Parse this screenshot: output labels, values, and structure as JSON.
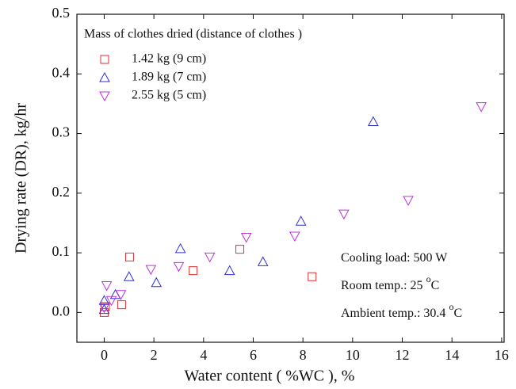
{
  "chart_data": {
    "type": "scatter",
    "xlabel": "Water content ( %WC ), %",
    "ylabel": "Drying rate (DR), kg/hr",
    "legend_title": "Mass of clothes dried (distance of clothes )",
    "legend_position": "upper left",
    "annotations": [
      {
        "text": "Cooling load: 500 W"
      },
      {
        "text": "Room temp.: 25 ",
        "sup": "o",
        "unit": "C"
      },
      {
        "text": "Ambient temp.: 30.4 ",
        "sup": "o",
        "unit": "C"
      }
    ],
    "xlim": [
      -1.1,
      16.1
    ],
    "xticks": [
      0,
      2,
      4,
      6,
      8,
      10,
      12,
      14,
      16
    ],
    "ylim": [
      -0.05,
      0.5
    ],
    "yticks": [
      {
        "value": 0,
        "label": "0.0"
      },
      0.1,
      0.2,
      0.3,
      0.4,
      0.5
    ],
    "series": [
      {
        "name": "1.42 kg (9 cm)",
        "color": "#e03030",
        "marker": "square",
        "x": [
          0,
          0.05,
          0.7,
          1.02,
          3.58,
          5.46,
          8.37
        ],
        "values": [
          0,
          0.01,
          0.013,
          0.093,
          0.07,
          0.106,
          0.06
        ]
      },
      {
        "name": "1.89 kg (7 cm)",
        "color": "#3030d0",
        "marker": "triangle-up",
        "x": [
          0,
          0,
          0.45,
          1.0,
          2.1,
          3.07,
          5.05,
          6.39,
          7.92,
          10.83
        ],
        "values": [
          0.005,
          0.02,
          0.03,
          0.06,
          0.05,
          0.107,
          0.07,
          0.085,
          0.153,
          0.32
        ]
      },
      {
        "name": "2.55 kg (5 cm)",
        "color": "#c030e0",
        "marker": "triangle-down",
        "x": [
          0,
          0.1,
          0.29,
          0.67,
          1.88,
          3.0,
          4.25,
          5.72,
          7.67,
          9.65,
          12.24,
          15.18
        ],
        "values": [
          0.008,
          0.045,
          0.02,
          0.03,
          0.072,
          0.077,
          0.093,
          0.126,
          0.128,
          0.165,
          0.188,
          0.345
        ]
      }
    ]
  }
}
